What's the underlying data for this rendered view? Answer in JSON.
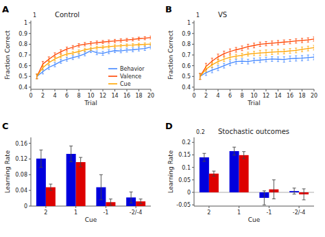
{
  "chart_data": [
    {
      "type": "line",
      "title": "Control",
      "annotations": [
        "A",
        "1"
      ],
      "x_label": "Trial",
      "y_label": "Fraction Correct",
      "x": [
        1,
        2,
        3,
        4,
        5,
        6,
        7,
        8,
        9,
        10,
        11,
        12,
        13,
        14,
        15,
        16,
        17,
        18,
        19,
        20
      ],
      "xlim": [
        0,
        20
      ],
      "xticks": [
        0,
        2,
        4,
        6,
        8,
        10,
        12,
        14,
        16,
        18,
        20
      ],
      "ylim": [
        0.38,
        1.02
      ],
      "yticks": [
        0.4,
        0.5,
        0.6,
        0.7,
        0.8,
        0.9,
        1
      ],
      "grid": false,
      "legend": "lower right",
      "series": [
        {
          "name": "Behavior",
          "color": "#4488FF",
          "values": [
            0.5,
            0.545,
            0.585,
            0.61,
            0.64,
            0.66,
            0.675,
            0.69,
            0.71,
            0.74,
            0.72,
            0.715,
            0.73,
            0.74,
            0.738,
            0.745,
            0.748,
            0.755,
            0.76,
            0.775
          ],
          "errors": [
            0.022,
            0.022,
            0.02,
            0.02,
            0.018,
            0.018,
            0.018,
            0.018,
            0.018,
            0.018,
            0.018,
            0.018,
            0.018,
            0.018,
            0.018,
            0.018,
            0.018,
            0.018,
            0.018,
            0.018
          ]
        },
        {
          "name": "Valence",
          "color": "#FF4400",
          "values": [
            0.5,
            0.615,
            0.66,
            0.7,
            0.73,
            0.755,
            0.772,
            0.79,
            0.8,
            0.808,
            0.815,
            0.82,
            0.825,
            0.83,
            0.835,
            0.84,
            0.845,
            0.852,
            0.856,
            0.862
          ],
          "errors": [
            0.022,
            0.025,
            0.022,
            0.02,
            0.018,
            0.018,
            0.016,
            0.016,
            0.016,
            0.016,
            0.015,
            0.015,
            0.015,
            0.015,
            0.015,
            0.014,
            0.014,
            0.014,
            0.014,
            0.014
          ]
        },
        {
          "name": "Cue",
          "color": "#FFA500",
          "values": [
            0.5,
            0.582,
            0.628,
            0.662,
            0.688,
            0.708,
            0.718,
            0.732,
            0.748,
            0.758,
            0.768,
            0.772,
            0.778,
            0.782,
            0.786,
            0.79,
            0.792,
            0.796,
            0.799,
            0.802
          ],
          "errors": [
            0.022,
            0.022,
            0.02,
            0.018,
            0.016,
            0.016,
            0.015,
            0.015,
            0.015,
            0.015,
            0.014,
            0.014,
            0.014,
            0.014,
            0.014,
            0.013,
            0.013,
            0.013,
            0.013,
            0.013
          ]
        }
      ]
    },
    {
      "type": "line",
      "title": "VS",
      "annotations": [
        "B",
        "1"
      ],
      "x_label": "Trial",
      "y_label": "Fraction Correct",
      "x": [
        1,
        2,
        3,
        4,
        5,
        6,
        7,
        8,
        9,
        10,
        11,
        12,
        13,
        14,
        15,
        16,
        17,
        18,
        19,
        20
      ],
      "xlim": [
        0,
        20
      ],
      "xticks": [
        0,
        2,
        4,
        6,
        8,
        10,
        12,
        14,
        16,
        18,
        20
      ],
      "ylim": [
        0.38,
        1.02
      ],
      "yticks": [
        0.4,
        0.5,
        0.6,
        0.7,
        0.8,
        0.9,
        1
      ],
      "grid": false,
      "series": [
        {
          "color": "#4488FF",
          "values": [
            0.5,
            0.535,
            0.558,
            0.578,
            0.6,
            0.622,
            0.638,
            0.642,
            0.638,
            0.648,
            0.652,
            0.658,
            0.662,
            0.66,
            0.658,
            0.665,
            0.668,
            0.67,
            0.675,
            0.68
          ],
          "errors": [
            0.028,
            0.026,
            0.024,
            0.024,
            0.022,
            0.022,
            0.022,
            0.022,
            0.022,
            0.022,
            0.022,
            0.022,
            0.022,
            0.022,
            0.025,
            0.025,
            0.025,
            0.025,
            0.025,
            0.025
          ]
        },
        {
          "color": "#FF4400",
          "values": [
            0.5,
            0.592,
            0.642,
            0.682,
            0.712,
            0.732,
            0.748,
            0.762,
            0.778,
            0.788,
            0.8,
            0.805,
            0.81,
            0.815,
            0.82,
            0.824,
            0.83,
            0.835,
            0.84,
            0.848
          ],
          "errors": [
            0.028,
            0.03,
            0.028,
            0.026,
            0.024,
            0.024,
            0.022,
            0.022,
            0.022,
            0.022,
            0.02,
            0.02,
            0.02,
            0.02,
            0.02,
            0.02,
            0.02,
            0.02,
            0.02,
            0.02
          ]
        },
        {
          "color": "#FFA500",
          "values": [
            0.5,
            0.568,
            0.608,
            0.638,
            0.66,
            0.678,
            0.688,
            0.698,
            0.708,
            0.714,
            0.718,
            0.722,
            0.726,
            0.73,
            0.732,
            0.738,
            0.742,
            0.752,
            0.76,
            0.768
          ],
          "errors": [
            0.028,
            0.026,
            0.024,
            0.022,
            0.02,
            0.02,
            0.018,
            0.018,
            0.018,
            0.02,
            0.025,
            0.025,
            0.022,
            0.022,
            0.022,
            0.022,
            0.022,
            0.022,
            0.022,
            0.022
          ]
        }
      ]
    },
    {
      "type": "bar",
      "annotations": [
        "C"
      ],
      "x_label": "Cue",
      "y_label": "Learning Rate",
      "categories": [
        "2",
        "1",
        "-1",
        "-2/-4"
      ],
      "ylim": [
        0,
        0.175
      ],
      "yticks": [
        0,
        0.04,
        0.08,
        0.12,
        0.16
      ],
      "grid": false,
      "series": [
        {
          "color": "#0000DD",
          "values": [
            0.121,
            0.133,
            0.048,
            0.022
          ],
          "errors": [
            0.022,
            0.02,
            0.032,
            0.014
          ]
        },
        {
          "color": "#DD0000",
          "values": [
            0.048,
            0.112,
            0.01,
            0.012
          ],
          "errors": [
            0.008,
            0.012,
            0.008,
            0.006
          ]
        }
      ]
    },
    {
      "type": "bar",
      "title": "Stochastic outcomes",
      "annotations": [
        "D",
        "0.2"
      ],
      "x_label": "Cue",
      "y_label": "Learning Rate",
      "categories": [
        "2",
        "1",
        "-1",
        "-2/-4"
      ],
      "ylim": [
        -0.055,
        0.22
      ],
      "yticks": [
        -0.05,
        0,
        0.05,
        0.1,
        0.15,
        0.2
      ],
      "grid": false,
      "series": [
        {
          "color": "#0000DD",
          "values": [
            0.14,
            0.165,
            -0.022,
            0.005
          ],
          "errors": [
            0.016,
            0.016,
            0.028,
            0.012
          ]
        },
        {
          "color": "#DD0000",
          "values": [
            0.075,
            0.149,
            0.012,
            -0.008
          ],
          "errors": [
            0.01,
            0.014,
            0.038,
            0.022
          ]
        }
      ]
    }
  ]
}
